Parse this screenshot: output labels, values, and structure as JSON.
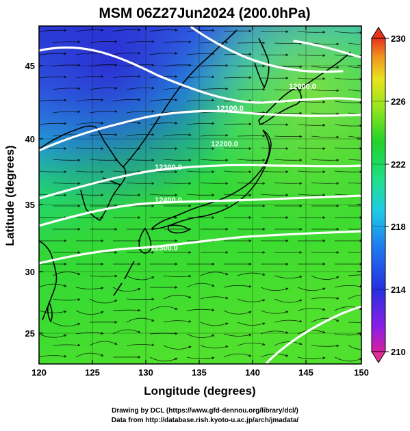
{
  "title": "MSM 06Z27Jun2024 (200.0hPa)",
  "x_axis": {
    "label": "Longitude (degrees)",
    "ticks": [
      "120",
      "125",
      "130",
      "135",
      "140",
      "145",
      "150"
    ]
  },
  "y_axis": {
    "label": "Latitude  (degrees)",
    "ticks": [
      "45",
      "40",
      "35",
      "30",
      "25"
    ]
  },
  "colorbar": {
    "ticks": [
      "230",
      "226",
      "222",
      "218",
      "214",
      "210"
    ],
    "colors": [
      "#e0307a",
      "#c81ec8",
      "#7a1ee8",
      "#2a2ae0",
      "#1e6ef0",
      "#19c8e6",
      "#1ee07a",
      "#22d22a",
      "#7fe21e",
      "#d2ee1e",
      "#f0d21e",
      "#f08a1e",
      "#e8321e"
    ]
  },
  "contour_labels": [
    "12000.0",
    "12100.0",
    "12200.0",
    "12300.0",
    "12400.0",
    "12500.0"
  ],
  "footer": {
    "line1": "Drawing by DCL (https://www.gfd-dennou.org/library/dcl/)",
    "line2": "Data from http://database.rish.kyoto-u.ac.jp/arch/jmadata/"
  }
}
